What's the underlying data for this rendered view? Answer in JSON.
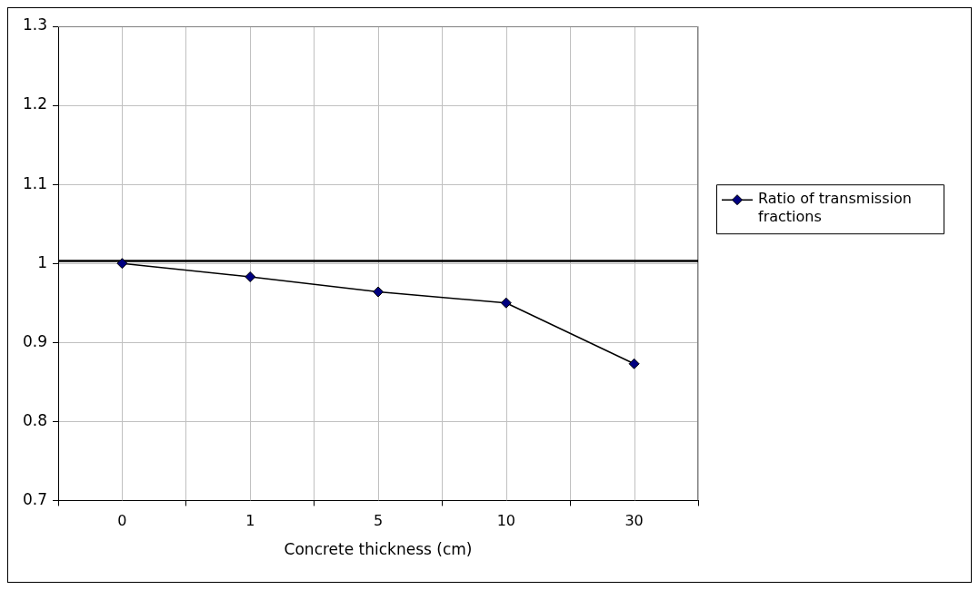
{
  "chart_data": {
    "type": "line",
    "xlabel": "Concrete thickness (cm)",
    "categories": [
      "0",
      "1",
      "5",
      "10",
      "30"
    ],
    "series": [
      {
        "name": "Ratio of transmission fractions",
        "color": "#000080",
        "values": [
          1.0,
          0.983,
          0.964,
          0.95,
          0.873
        ]
      }
    ],
    "ylim": [
      0.7,
      1.3
    ],
    "yticks": [
      0.7,
      0.8,
      0.9,
      {
        "value": 1.0,
        "label": "1"
      },
      1.1,
      1.2,
      1.3
    ],
    "ref_lines": [
      {
        "axis": "y",
        "value": 1.003,
        "color": "#000000"
      }
    ],
    "grid": true,
    "legend": "right",
    "marker": "diamond",
    "line_style": "solid"
  }
}
